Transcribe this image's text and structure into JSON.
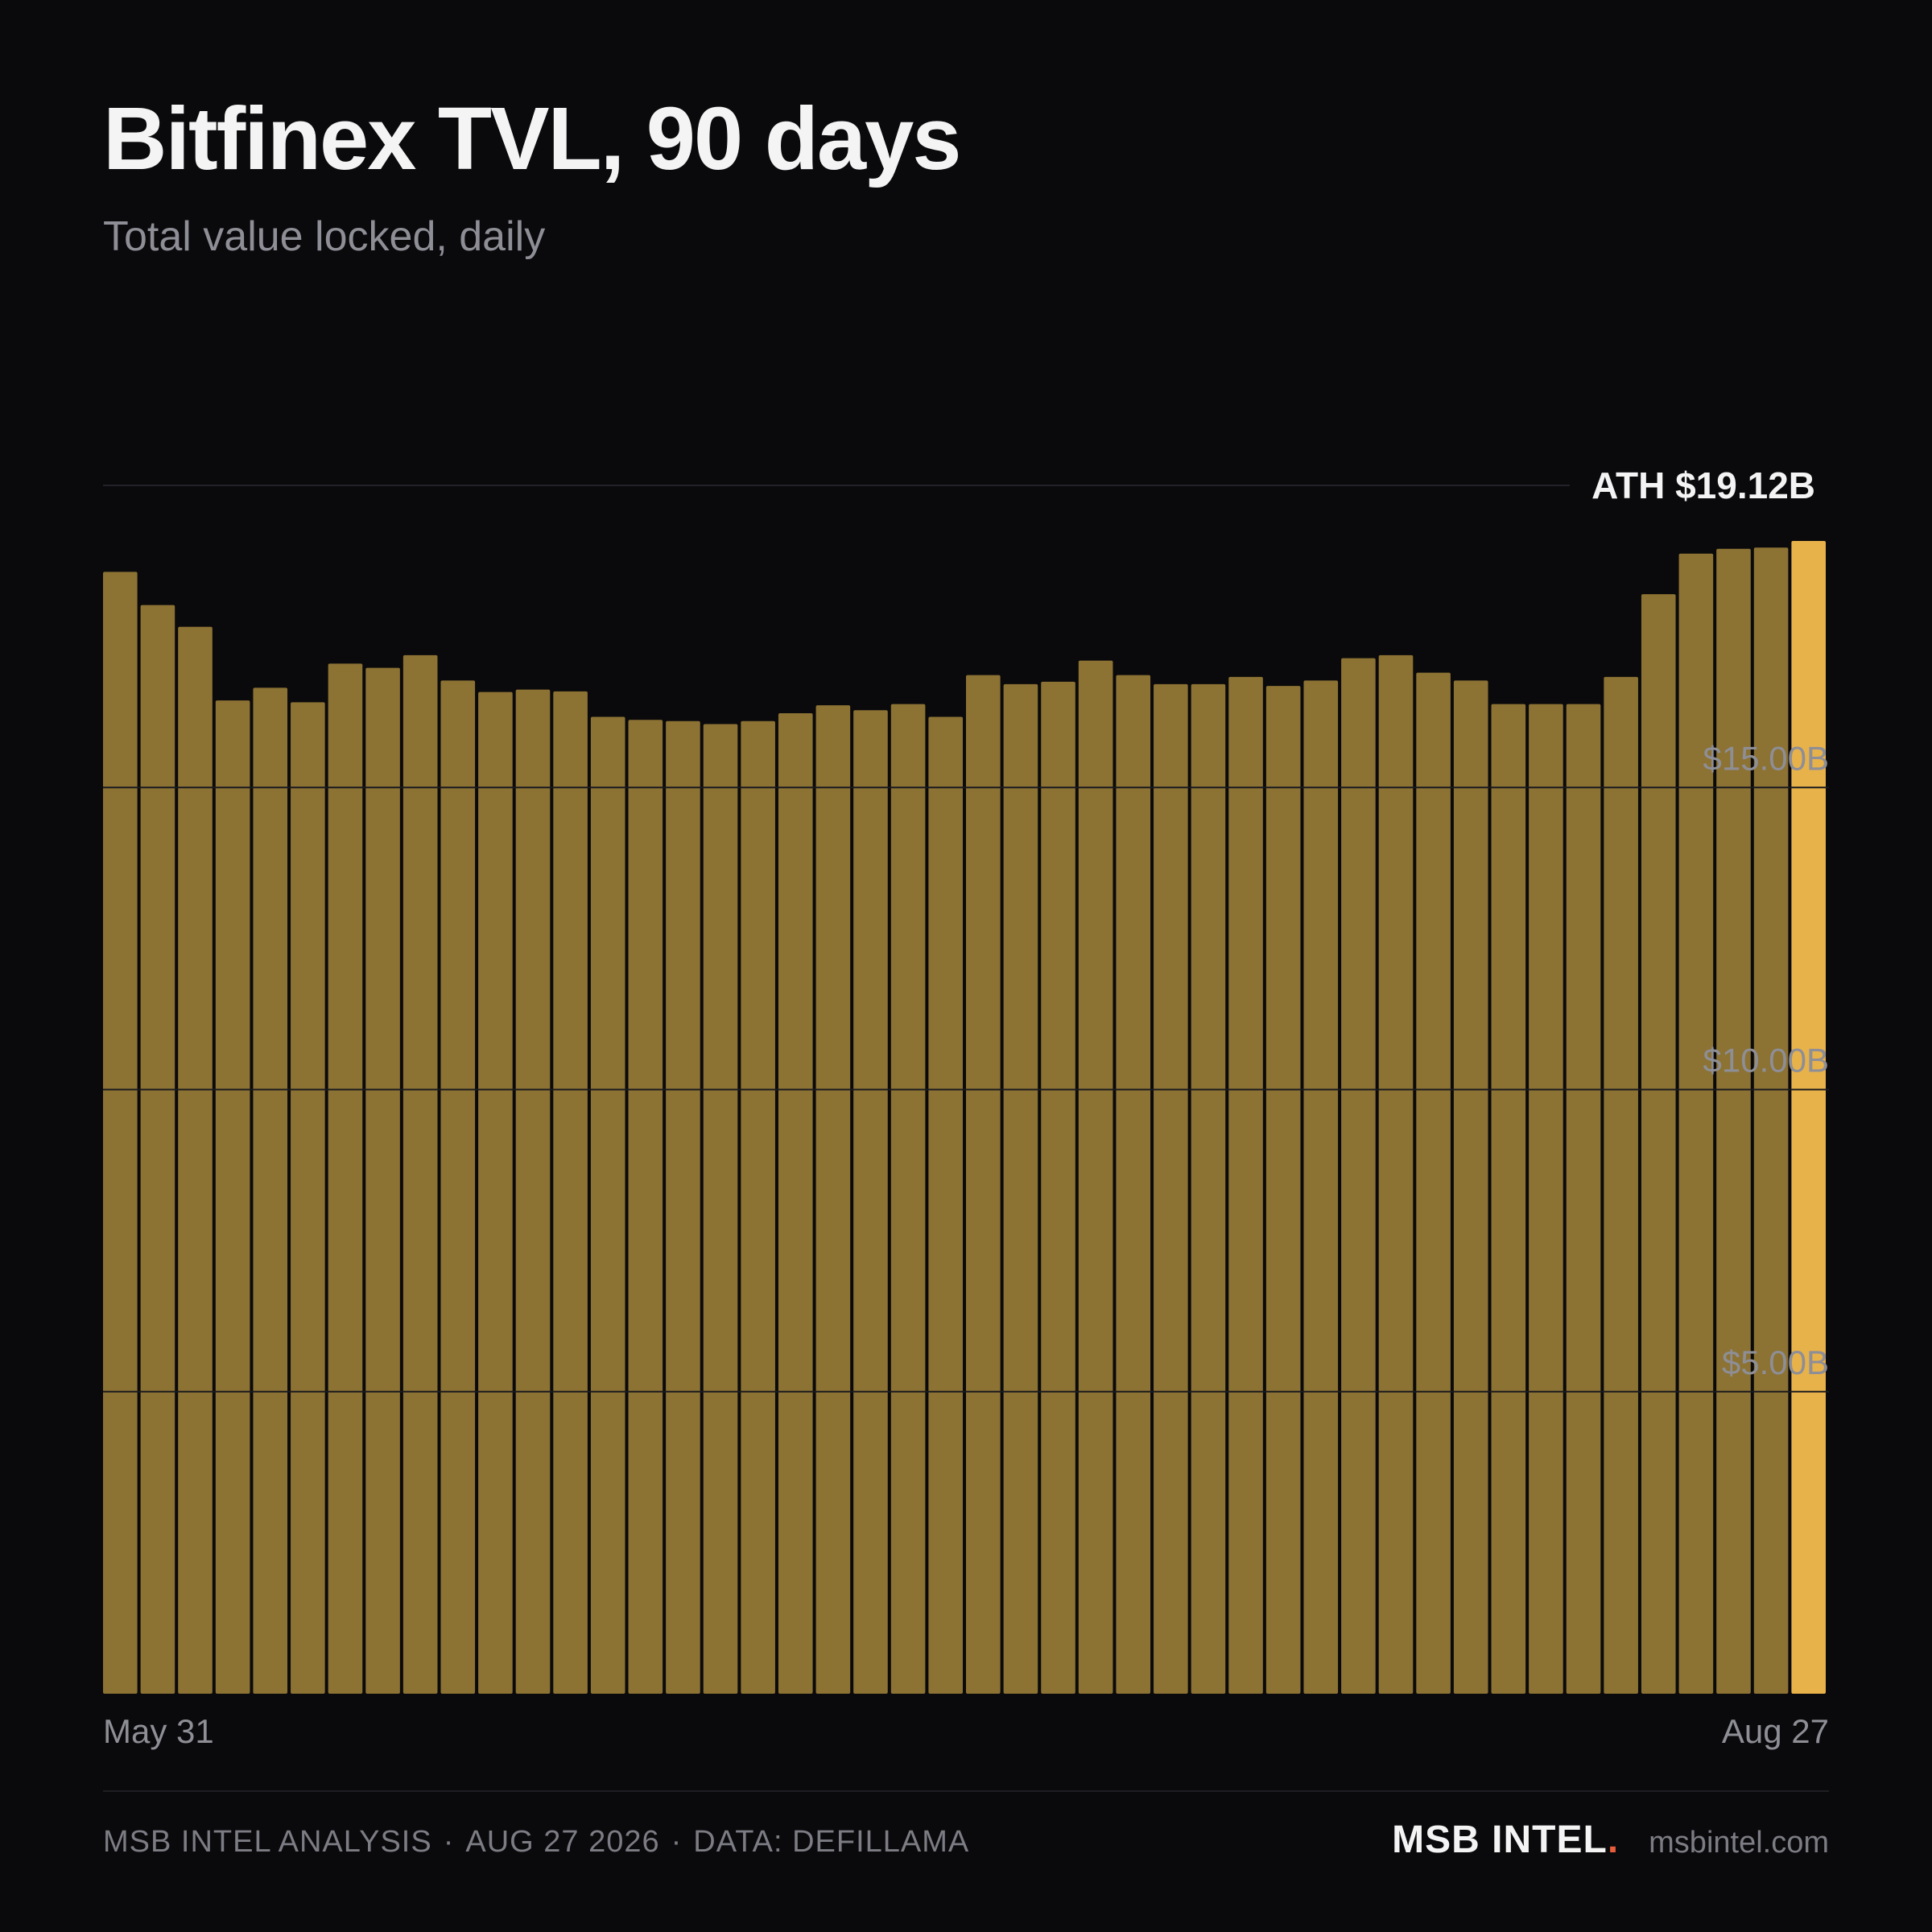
{
  "header": {
    "title": "Bitfinex TVL, 90 days",
    "subtitle": "Total value locked, daily"
  },
  "chart_data": {
    "type": "bar",
    "title": "Bitfinex TVL, 90 days",
    "subtitle": "Total value locked, daily",
    "x_start_label": "May 31",
    "x_end_label": "Aug 27",
    "ylim": [
      0,
      20
    ],
    "y_unit": "$B",
    "y_ticks": [
      {
        "value": 5,
        "label": "$5.00B"
      },
      {
        "value": 10,
        "label": "$10.00B"
      },
      {
        "value": 15,
        "label": "$15.00B"
      }
    ],
    "grid": true,
    "annotation": {
      "label": "ATH $19.12B",
      "value": 19.12
    },
    "highlight_last": true,
    "values": [
      18.57,
      18.02,
      17.66,
      16.44,
      16.65,
      16.41,
      17.05,
      16.98,
      17.19,
      16.77,
      16.58,
      16.62,
      16.59,
      16.17,
      16.12,
      16.1,
      16.05,
      16.1,
      16.23,
      16.36,
      16.28,
      16.38,
      16.17,
      16.86,
      16.71,
      16.75,
      17.1,
      16.86,
      16.71,
      16.71,
      16.83,
      16.68,
      16.77,
      17.14,
      17.19,
      16.9,
      16.77,
      16.38,
      16.38,
      16.38,
      16.83,
      18.2,
      18.87,
      18.95,
      18.97,
      19.08
    ],
    "colors": {
      "bar": "#8c7233",
      "bar_highlight": "#e8b24b",
      "grid": "#23232a",
      "tick_label": "#8e8e96",
      "annotation": "#f4f4f5"
    }
  },
  "footer": {
    "source_line": [
      "MSB INTEL ANALYSIS",
      "AUG 27 2026",
      "DATA: DEFILLAMA"
    ],
    "separator": "·",
    "brand_name": "MSB INTEL",
    "brand_dot": ".",
    "brand_url": "msbintel.com",
    "colors": {
      "brand_dot": "#e85d3b"
    }
  }
}
